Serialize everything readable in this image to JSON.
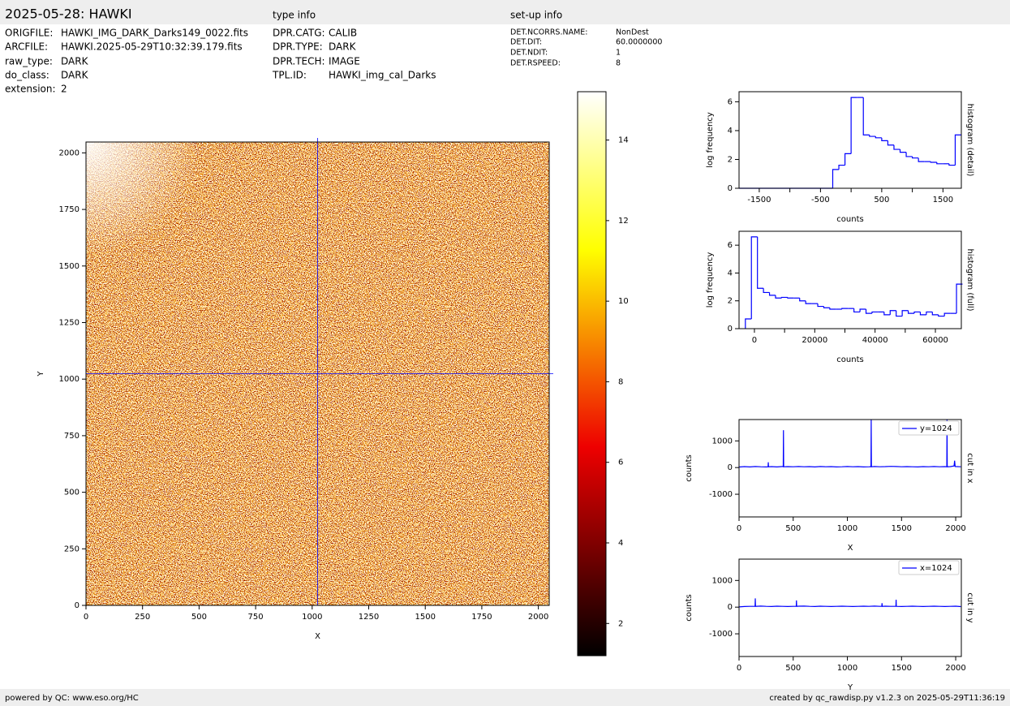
{
  "header": {
    "title": "2025-05-28: HAWKI",
    "type_info_title": "type info",
    "setup_info_title": "set-up info"
  },
  "file_info": [
    {
      "key": "ORIGFILE:",
      "value": "HAWKI_IMG_DARK_Darks149_0022.fits"
    },
    {
      "key": "ARCFILE:",
      "value": "HAWKI.2025-05-29T10:32:39.179.fits"
    },
    {
      "key": "raw_type:",
      "value": "DARK"
    },
    {
      "key": "do_class:",
      "value": "DARK"
    },
    {
      "key": "extension:",
      "value": "2"
    }
  ],
  "type_info": [
    {
      "key": "DPR.CATG:",
      "value": "CALIB"
    },
    {
      "key": "DPR.TYPE:",
      "value": "DARK"
    },
    {
      "key": "DPR.TECH:",
      "value": "IMAGE"
    },
    {
      "key": "TPL.ID:",
      "value": "HAWKI_img_cal_Darks"
    }
  ],
  "setup_info": [
    {
      "key": "DET.NCORRS.NAME:",
      "value": "NonDest"
    },
    {
      "key": "DET.DIT:",
      "value": "60.0000000"
    },
    {
      "key": "DET.NDIT:",
      "value": "1"
    },
    {
      "key": "DET.RSPEED:",
      "value": "8"
    }
  ],
  "footer": {
    "left": "powered by QC: www.eso.org/HC",
    "right": "created by qc_rawdisp.py v1.2.3 on 2025-05-29T11:36:19"
  },
  "chart_data": [
    {
      "type": "image",
      "x_label": "X",
      "y_label": "Y",
      "xlim": [
        0,
        2048
      ],
      "ylim": [
        0,
        2048
      ],
      "xticks": [
        0,
        250,
        500,
        750,
        1000,
        1250,
        1500,
        1750,
        2000
      ],
      "yticks": [
        0,
        250,
        500,
        750,
        1000,
        1250,
        1500,
        1750,
        2000
      ],
      "crosshair_x": 1024,
      "crosshair_y": 1024,
      "crosshair_color": "#0000ff",
      "clim": [
        1.2,
        15.2
      ],
      "cticks": [
        2,
        4,
        6,
        8,
        10,
        12,
        14
      ]
    },
    {
      "type": "histogram",
      "x_label": "counts",
      "y_label": "log frequency",
      "side_label": "histogram (detail)",
      "color": "#0000ff",
      "xlim": [
        -1830,
        1800
      ],
      "ylim": [
        0,
        6.7
      ],
      "xticks": [
        -1500,
        -500,
        500,
        1500
      ],
      "xticks_minor": [
        -1000,
        0,
        1000
      ],
      "yticks": [
        0,
        2,
        4,
        6
      ],
      "bins": [
        -1830,
        -300,
        -200,
        -100,
        0,
        100,
        200,
        300,
        400,
        500,
        600,
        700,
        800,
        900,
        1000,
        1100,
        1200,
        1300,
        1400,
        1500,
        1600,
        1700,
        1800
      ],
      "values": [
        0,
        1.3,
        1.6,
        2.4,
        6.3,
        6.3,
        3.7,
        3.6,
        3.5,
        3.3,
        3.0,
        2.7,
        2.5,
        2.2,
        2.1,
        1.85,
        1.85,
        1.8,
        1.7,
        1.7,
        1.6,
        3.7
      ]
    },
    {
      "type": "histogram",
      "x_label": "counts",
      "y_label": "log frequency",
      "side_label": "histogram (full)",
      "color": "#0000ff",
      "xlim": [
        -5100,
        68600
      ],
      "ylim": [
        0,
        7.0
      ],
      "xticks": [
        0,
        20000,
        40000,
        60000
      ],
      "xticks_minor": [
        10000,
        30000,
        50000
      ],
      "yticks": [
        0,
        2,
        4,
        6
      ],
      "bins": [
        -3000,
        -1000,
        1000,
        3000,
        5000,
        7000,
        9000,
        11000,
        13000,
        15000,
        17000,
        19000,
        21000,
        23000,
        25000,
        27000,
        29000,
        31000,
        33000,
        35000,
        37000,
        39000,
        41000,
        43000,
        45000,
        47000,
        49000,
        51000,
        53000,
        55000,
        57000,
        59000,
        61000,
        63000,
        65000,
        67000,
        69000
      ],
      "values": [
        0.7,
        6.6,
        2.9,
        2.6,
        2.4,
        2.2,
        2.25,
        2.2,
        2.2,
        2.0,
        1.8,
        1.8,
        1.6,
        1.5,
        1.4,
        1.4,
        1.45,
        1.45,
        1.2,
        1.4,
        1.1,
        1.2,
        1.2,
        1.0,
        1.3,
        0.9,
        1.3,
        1.1,
        1.2,
        1.0,
        1.2,
        1.0,
        0.9,
        1.1,
        1.1,
        3.2
      ]
    },
    {
      "type": "line",
      "x_label": "X",
      "y_label": "counts",
      "side_label": "cut in x",
      "xlim": [
        0,
        2052
      ],
      "ylim": [
        -1850,
        1800
      ],
      "xticks": [
        0,
        500,
        1000,
        1500,
        2000
      ],
      "yticks": [
        -1000,
        0,
        1000
      ],
      "series": [
        {
          "name": "y=1024",
          "color": "#0000ff",
          "x": [
            0,
            50,
            100,
            150,
            200,
            250,
            268,
            270,
            272,
            300,
            350,
            400,
            408,
            410,
            412,
            450,
            500,
            550,
            600,
            650,
            700,
            750,
            800,
            850,
            900,
            950,
            1000,
            1050,
            1100,
            1150,
            1200,
            1218,
            1220,
            1222,
            1250,
            1300,
            1350,
            1400,
            1450,
            1500,
            1550,
            1600,
            1650,
            1700,
            1750,
            1800,
            1850,
            1900,
            1918,
            1920,
            1922,
            1950,
            1985,
            1990,
            1995,
            2047
          ],
          "values": [
            20,
            35,
            25,
            40,
            30,
            25,
            30,
            200,
            30,
            35,
            25,
            40,
            30,
            1400,
            30,
            35,
            30,
            40,
            30,
            35,
            25,
            40,
            30,
            35,
            25,
            30,
            40,
            30,
            35,
            25,
            30,
            35,
            1800,
            30,
            40,
            30,
            35,
            45,
            40,
            30,
            35,
            30,
            25,
            35,
            30,
            40,
            30,
            35,
            30,
            1800,
            30,
            35,
            60,
            260,
            40,
            30
          ]
        }
      ]
    },
    {
      "type": "line",
      "x_label": "Y",
      "y_label": "counts",
      "side_label": "cut in y",
      "xlim": [
        0,
        2052
      ],
      "ylim": [
        -1850,
        1800
      ],
      "xticks": [
        0,
        500,
        1000,
        1500,
        2000
      ],
      "yticks": [
        -1000,
        0,
        1000
      ],
      "series": [
        {
          "name": "x=1024",
          "color": "#0000ff",
          "x": [
            0,
            50,
            100,
            148,
            150,
            152,
            200,
            250,
            300,
            350,
            400,
            450,
            500,
            528,
            530,
            532,
            550,
            600,
            650,
            700,
            750,
            800,
            850,
            900,
            950,
            1000,
            1050,
            1100,
            1150,
            1200,
            1250,
            1300,
            1318,
            1320,
            1322,
            1350,
            1400,
            1448,
            1450,
            1452,
            1500,
            1550,
            1600,
            1650,
            1700,
            1750,
            1800,
            1850,
            1900,
            1950,
            2000,
            2047
          ],
          "values": [
            10,
            25,
            30,
            30,
            330,
            30,
            40,
            30,
            25,
            35,
            30,
            25,
            30,
            30,
            250,
            30,
            35,
            40,
            30,
            25,
            35,
            30,
            25,
            30,
            35,
            30,
            25,
            30,
            35,
            30,
            40,
            30,
            30,
            150,
            30,
            35,
            30,
            30,
            280,
            30,
            25,
            30,
            35,
            30,
            25,
            30,
            35,
            30,
            25,
            30,
            35,
            20
          ]
        }
      ]
    }
  ]
}
